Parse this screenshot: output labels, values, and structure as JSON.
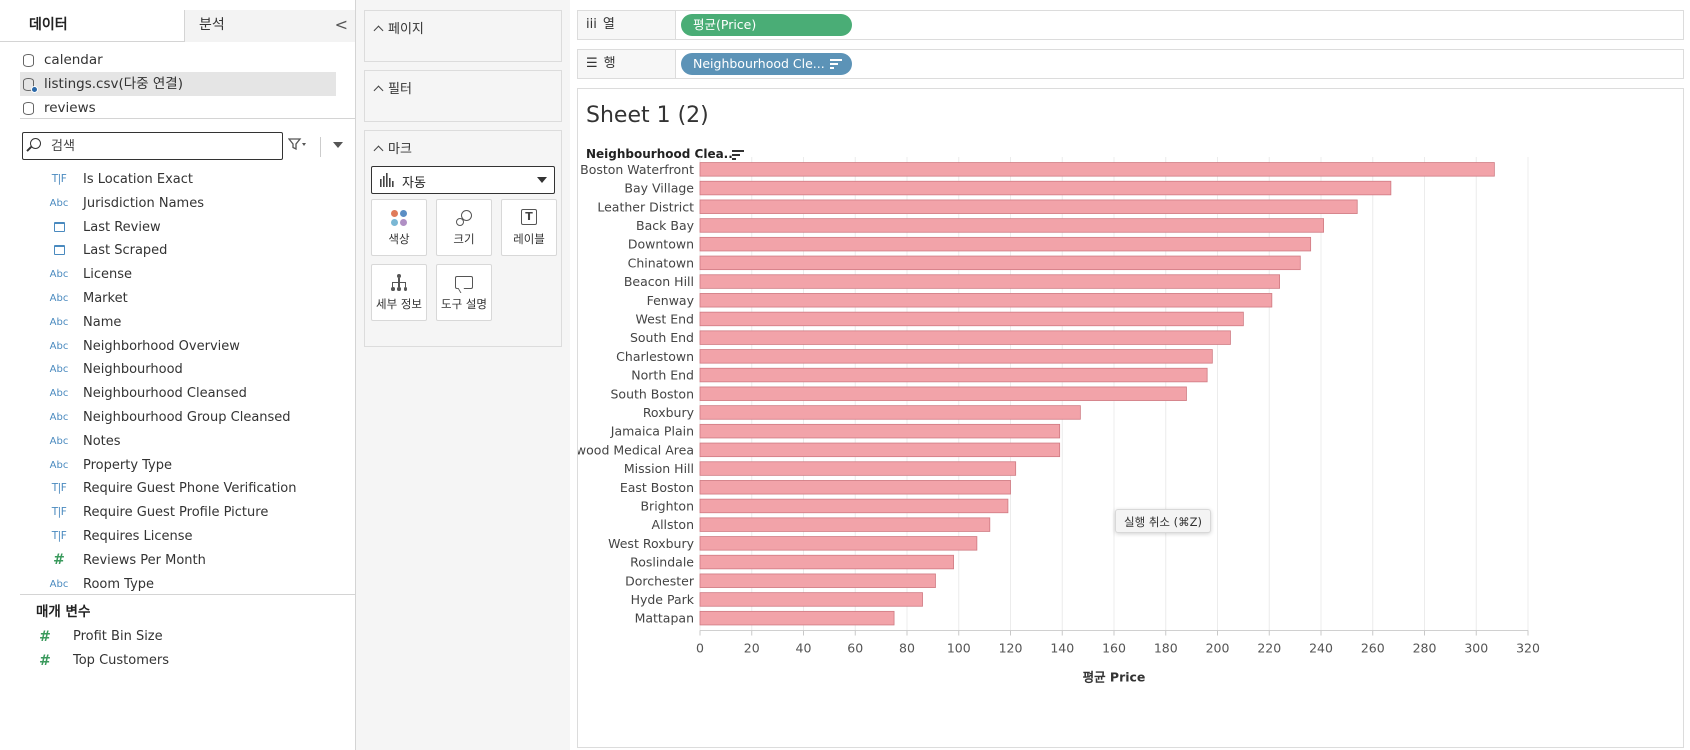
{
  "pane": {
    "tab_data": "데이터",
    "tab_analysis": "분석",
    "collapse_glyph": "<"
  },
  "datasources": [
    {
      "label": "calendar",
      "selected": false
    },
    {
      "label": "listings.csv(다중 연결)",
      "selected": true
    },
    {
      "label": "reviews",
      "selected": false
    }
  ],
  "search": {
    "placeholder": "검색",
    "value": ""
  },
  "fields": [
    {
      "type": "bool",
      "label": "Is Location Exact"
    },
    {
      "type": "string",
      "label": "Jurisdiction Names"
    },
    {
      "type": "date",
      "label": "Last Review"
    },
    {
      "type": "date",
      "label": "Last Scraped"
    },
    {
      "type": "string",
      "label": "License"
    },
    {
      "type": "string",
      "label": "Market"
    },
    {
      "type": "string",
      "label": "Name"
    },
    {
      "type": "string",
      "label": "Neighborhood Overview"
    },
    {
      "type": "string",
      "label": "Neighbourhood"
    },
    {
      "type": "string",
      "label": "Neighbourhood Cleansed"
    },
    {
      "type": "string",
      "label": "Neighbourhood Group Cleansed"
    },
    {
      "type": "string",
      "label": "Notes"
    },
    {
      "type": "string",
      "label": "Property Type"
    },
    {
      "type": "bool",
      "label": "Require Guest Phone Verification"
    },
    {
      "type": "bool",
      "label": "Require Guest Profile Picture"
    },
    {
      "type": "bool",
      "label": "Requires License"
    },
    {
      "type": "number",
      "label": "Reviews Per Month"
    },
    {
      "type": "string",
      "label": "Room Type"
    }
  ],
  "type_glyphs": {
    "bool": "T|F",
    "string": "Abc",
    "number": "#"
  },
  "parameters": {
    "title": "매개 변수",
    "items": [
      {
        "label": "Profit Bin Size"
      },
      {
        "label": "Top Customers"
      }
    ]
  },
  "cards": {
    "pages": "페이지",
    "filters": "필터",
    "marks": "마크",
    "mark_type": "자동",
    "buttons": {
      "color": "색상",
      "size": "크기",
      "label": "레이블",
      "detail": "세부 정보",
      "tooltip": "도구 설명"
    },
    "label_icon_glyph": "T"
  },
  "shelves": {
    "columns_label": "열",
    "columns_glyph": "iii",
    "columns_pill": "평균(Price)",
    "rows_label": "행",
    "rows_glyph": "☰",
    "rows_pill": "Neighbourhood Cle..."
  },
  "sheet": {
    "title": "Sheet 1 (2)",
    "row_header": "Neighbourhood Clea..",
    "tooltip": "실행 취소  (⌘Z)"
  },
  "colors": {
    "bar_fill": "#f2a3a9",
    "bar_stroke": "#cf7a82",
    "pill_columns": "#4aad76",
    "pill_rows": "#5c93b7",
    "mark_dots": [
      "#e07b5a",
      "#5b8ec4",
      "#7ab7d4",
      "#b08fc4"
    ]
  },
  "chart_data": {
    "type": "bar",
    "orientation": "horizontal",
    "categories": [
      "South Boston Waterfront",
      "Bay Village",
      "Leather District",
      "Back Bay",
      "Downtown",
      "Chinatown",
      "Beacon Hill",
      "Fenway",
      "West End",
      "South End",
      "Charlestown",
      "North End",
      "South Boston",
      "Roxbury",
      "Jamaica Plain",
      "Longwood Medical Area",
      "Mission Hill",
      "East Boston",
      "Brighton",
      "Allston",
      "West Roxbury",
      "Roslindale",
      "Dorchester",
      "Hyde Park",
      "Mattapan"
    ],
    "values": [
      307,
      267,
      254,
      241,
      236,
      232,
      224,
      221,
      210,
      205,
      198,
      196,
      188,
      147,
      139,
      139,
      122,
      120,
      119,
      112,
      107,
      98,
      91,
      86,
      75
    ],
    "xlabel": "평균 Price",
    "ylabel": "Neighbourhood Clea..",
    "xlim": [
      0,
      320
    ],
    "xticks": [
      0,
      20,
      40,
      60,
      80,
      100,
      120,
      140,
      160,
      180,
      200,
      220,
      240,
      260,
      280,
      300,
      320
    ],
    "grid": true,
    "legend": "none"
  }
}
